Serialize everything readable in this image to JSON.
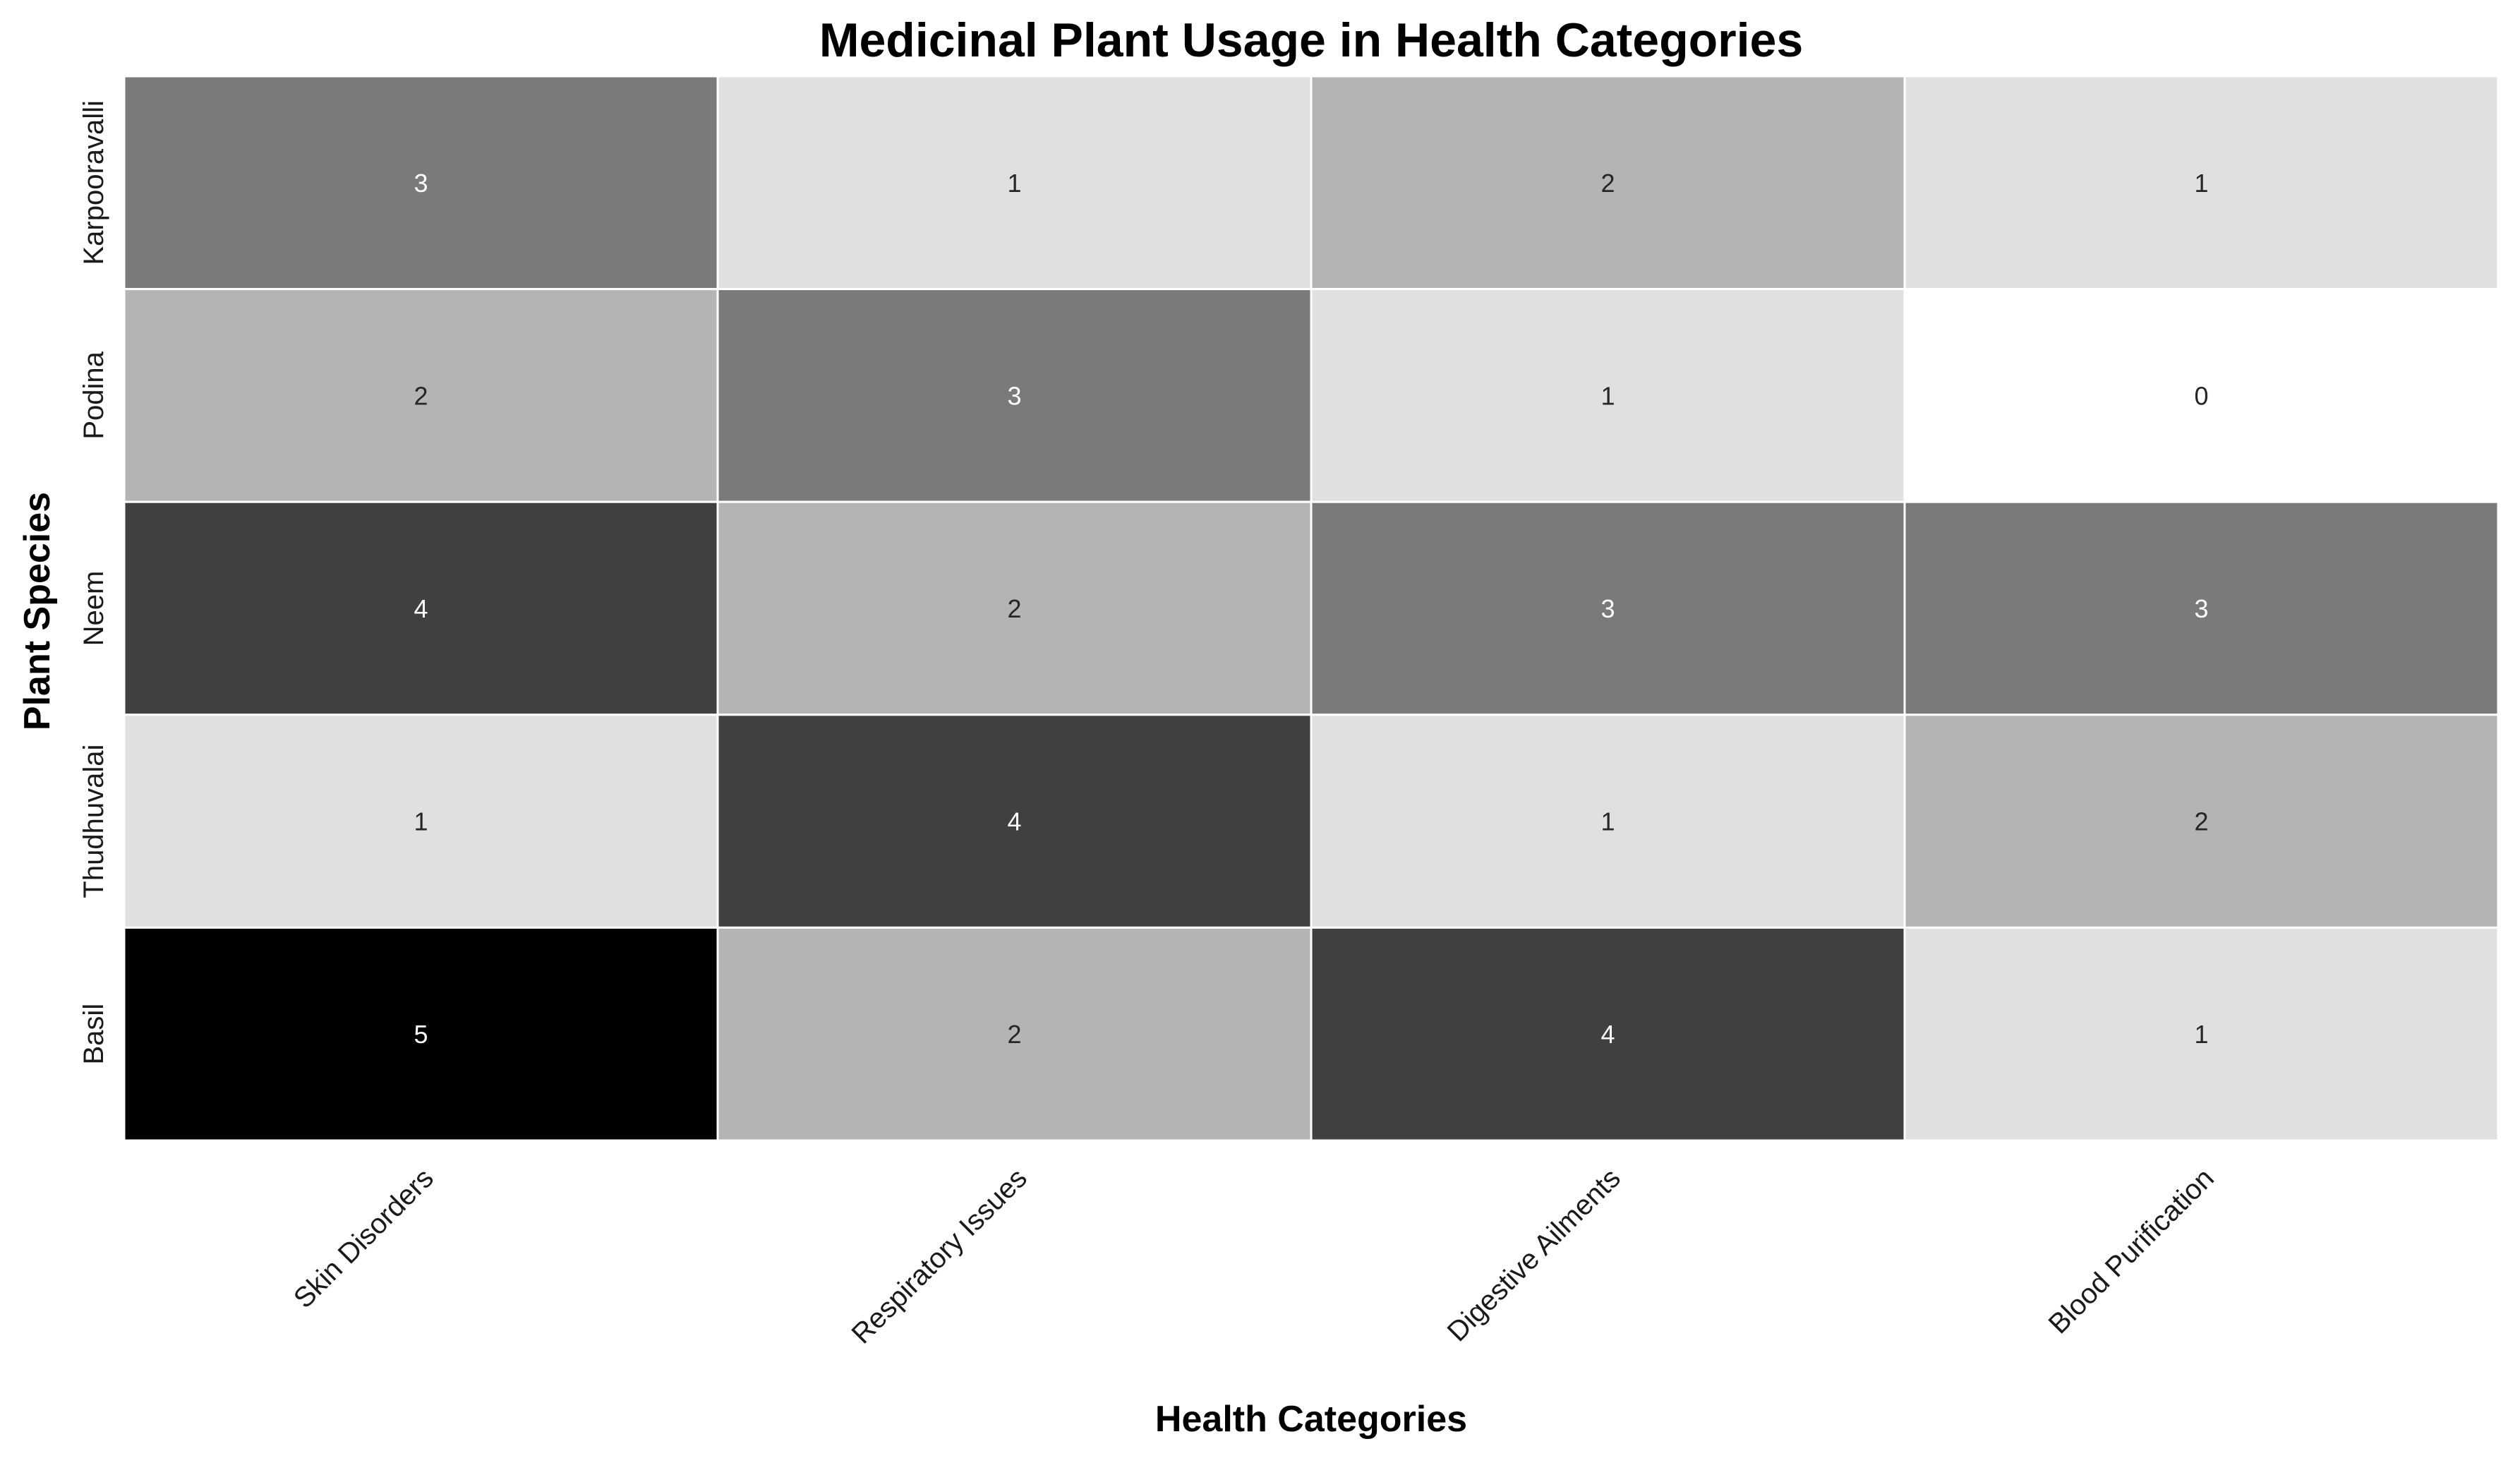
{
  "chart_data": {
    "type": "heatmap",
    "title": "Medicinal Plant Usage in Health Categories",
    "xlabel": "Health Categories",
    "ylabel": "Plant Species",
    "columns": [
      "Skin Disorders",
      "Respiratory Issues",
      "Digestive Ailments",
      "Blood Purification"
    ],
    "rows": [
      "Karpooravalli",
      "Podina",
      "Neem",
      "Thudhuvalai",
      "Basil"
    ],
    "values": [
      [
        3,
        1,
        2,
        1
      ],
      [
        2,
        3,
        1,
        0
      ],
      [
        4,
        2,
        3,
        3
      ],
      [
        1,
        4,
        1,
        2
      ],
      [
        5,
        2,
        4,
        1
      ]
    ],
    "value_range": [
      0,
      5
    ],
    "colormap": "greys",
    "color_low": "#ffffff",
    "color_high": "#000000",
    "annotated": true,
    "legend": "none"
  }
}
